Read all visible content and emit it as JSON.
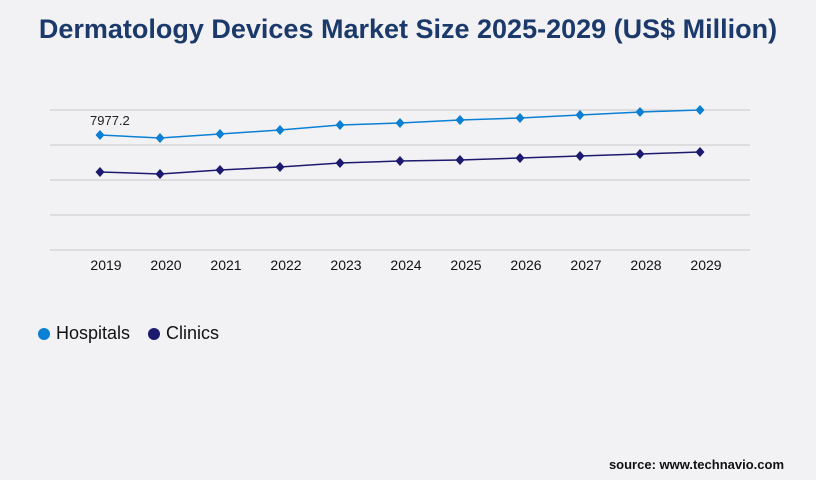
{
  "title": "Dermatology Devices Market Size 2025-2029 (US$ Million)",
  "source": "source: www.technavio.com",
  "chart_data": {
    "type": "line",
    "title": "Dermatology Devices Market Size 2025-2029 (US$ Million)",
    "x": [
      "2019",
      "2020",
      "2021",
      "2022",
      "2023",
      "2024",
      "2025",
      "2026",
      "2027",
      "2028",
      "2029"
    ],
    "ylim": [
      0,
      9712
    ],
    "grid": true,
    "legend": "bottom-left",
    "series": [
      {
        "name": "Hospitals",
        "color": "#0a7fd4",
        "values": [
          7977.2,
          7769,
          8047,
          8324,
          8671,
          8810,
          9018,
          9157,
          9365,
          9573,
          9712
        ]
      },
      {
        "name": "Clinics",
        "color": "#1c1a6e",
        "values": [
          5411,
          5272,
          5550,
          5758,
          6035,
          6174,
          6243,
          6382,
          6521,
          6659,
          6798
        ]
      }
    ],
    "annotations": [
      {
        "series": "Hospitals",
        "x": "2019",
        "text": "7977.2"
      }
    ]
  }
}
